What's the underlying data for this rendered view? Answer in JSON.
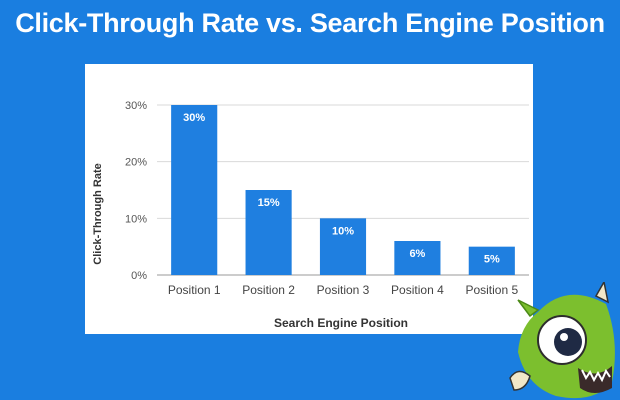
{
  "page": {
    "title": "Click-Through Rate vs. Search Engine Position",
    "background_color": "#1a7ee0"
  },
  "chart_data": {
    "type": "bar",
    "title": "",
    "categories": [
      "Position 1",
      "Position 2",
      "Position 3",
      "Position 4",
      "Position 5"
    ],
    "values": [
      30,
      15,
      10,
      6,
      5
    ],
    "value_labels": [
      "30%",
      "15%",
      "10%",
      "6%",
      "5%"
    ],
    "xlabel": "Search Engine Position",
    "ylabel": "Click-Through Rate",
    "ylim": [
      0,
      30
    ],
    "yticks": [
      0,
      10,
      20,
      30
    ],
    "ytick_labels": [
      "0%",
      "10%",
      "20%",
      "30%"
    ],
    "grid": true,
    "legend": "none",
    "bar_color": "#1f7fe0",
    "label_color": "#ffffff"
  },
  "mascot": {
    "icon": "monster-mascot-icon",
    "body_color": "#7cbf2e"
  }
}
